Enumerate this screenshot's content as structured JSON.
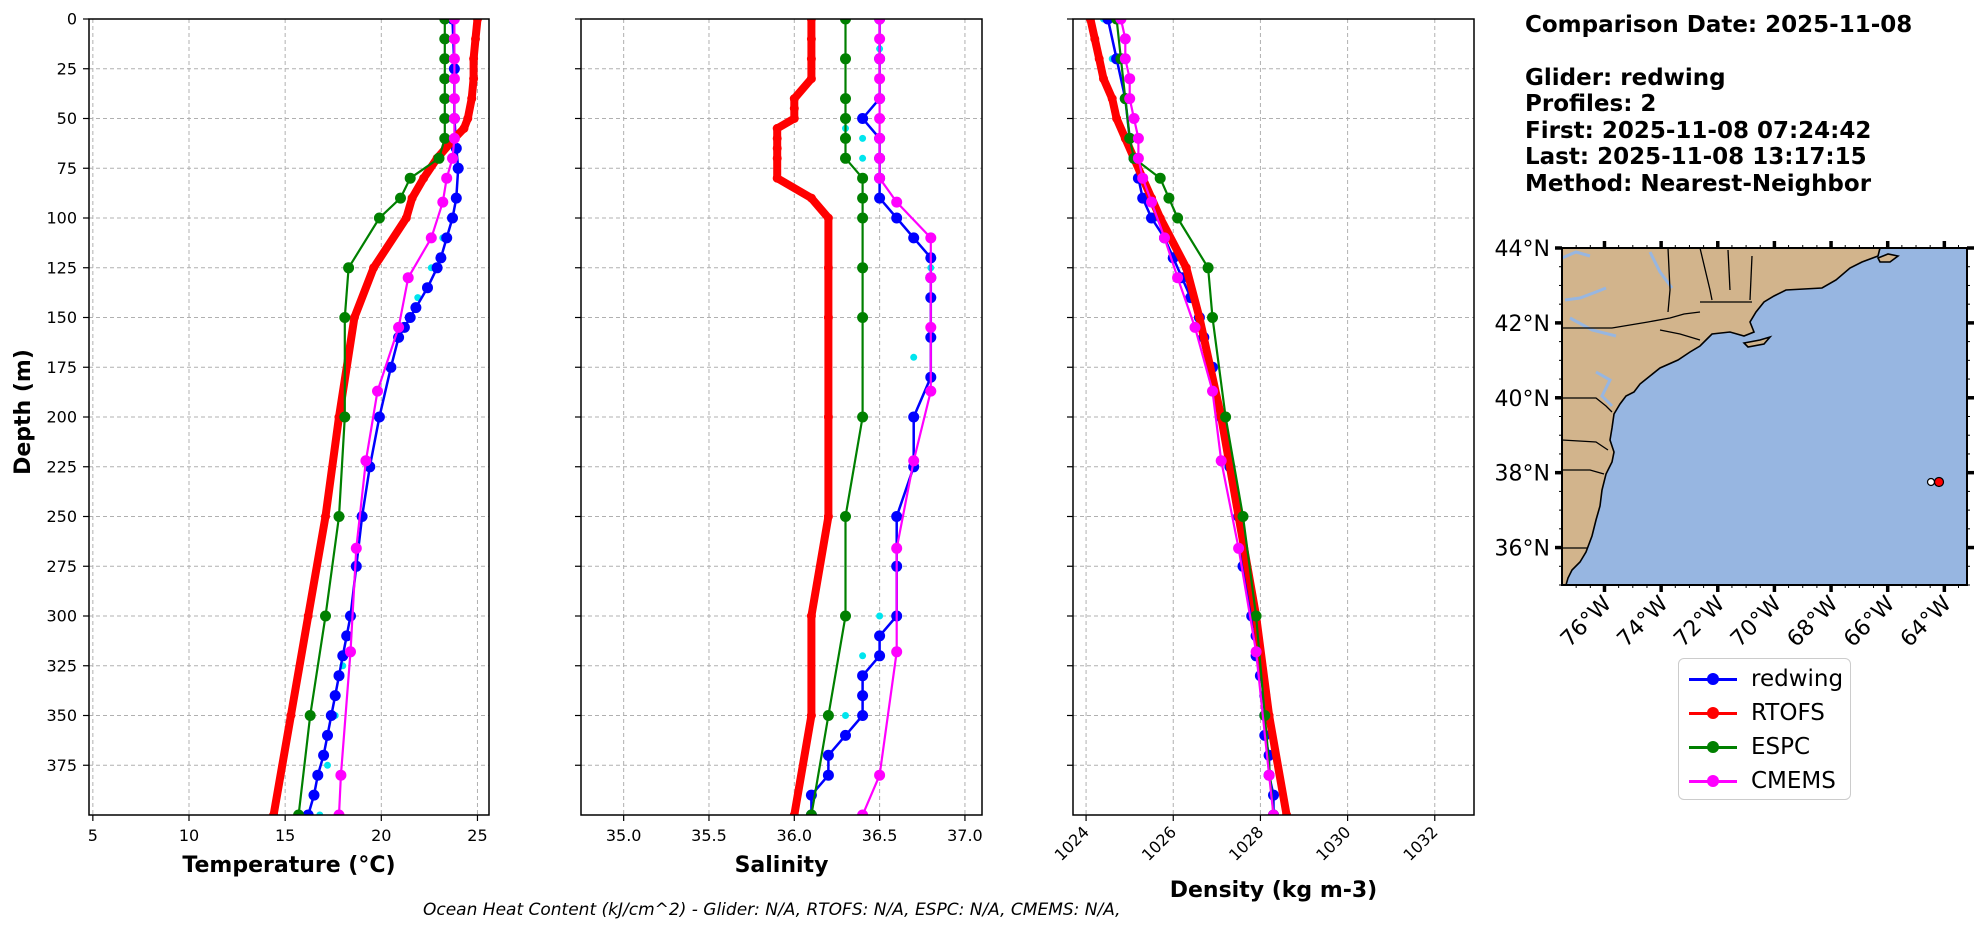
{
  "depth_axis": {
    "label": "Depth (m)",
    "range": [
      0,
      400
    ],
    "ticks": [
      0,
      25,
      50,
      75,
      100,
      125,
      150,
      175,
      200,
      225,
      250,
      275,
      300,
      325,
      350,
      375
    ]
  },
  "colors": {
    "glider": "#0000ff",
    "glider_raw": "#00e5ee",
    "rtofs": "#ff0000",
    "espc": "#008000",
    "cmems": "#ff00ff",
    "ocean": "#97b6e1",
    "land": "#d2b48c",
    "grid": "#b0b0b0"
  },
  "chart_data": [
    {
      "type": "line",
      "title": "",
      "xlabel": "Temperature (°C)",
      "ylabel": "Depth (m)",
      "xlim": [
        4.8,
        25.6
      ],
      "ylim": [
        400,
        0
      ],
      "xticks": [
        5,
        10,
        15,
        20,
        25
      ],
      "series": [
        {
          "name": "redwing raw",
          "depth": [
            0,
            25,
            50,
            75,
            90,
            100,
            110,
            125,
            140,
            160,
            200,
            250,
            300,
            325,
            350,
            375,
            400
          ],
          "values": [
            23.8,
            23.8,
            23.9,
            23.9,
            23.9,
            23.7,
            23.2,
            22.6,
            21.9,
            20.9,
            19.8,
            19.0,
            18.4,
            18.0,
            17.6,
            17.2,
            16.8
          ]
        },
        {
          "name": "redwing",
          "depth": [
            0,
            25,
            50,
            65,
            75,
            90,
            100,
            110,
            120,
            125,
            135,
            145,
            150,
            155,
            160,
            175,
            200,
            225,
            250,
            275,
            300,
            310,
            320,
            330,
            340,
            350,
            360,
            370,
            380,
            390,
            400
          ],
          "values": [
            23.7,
            23.8,
            23.8,
            23.9,
            24.0,
            23.9,
            23.7,
            23.4,
            23.1,
            22.9,
            22.4,
            21.8,
            21.5,
            21.2,
            20.9,
            20.5,
            19.9,
            19.4,
            19.0,
            18.7,
            18.4,
            18.2,
            18.0,
            17.8,
            17.6,
            17.4,
            17.2,
            17.0,
            16.7,
            16.5,
            16.2
          ]
        },
        {
          "name": "RTOFS",
          "depth": [
            0,
            10,
            20,
            30,
            40,
            50,
            55,
            60,
            70,
            80,
            90,
            100,
            125,
            150,
            200,
            250,
            300,
            350,
            400
          ],
          "values": [
            25.0,
            24.9,
            24.8,
            24.8,
            24.7,
            24.5,
            24.3,
            23.8,
            22.9,
            22.2,
            21.6,
            21.3,
            19.6,
            18.6,
            17.8,
            17.1,
            16.2,
            15.3,
            14.4
          ]
        },
        {
          "name": "ESPC",
          "depth": [
            0,
            10,
            20,
            30,
            40,
            50,
            60,
            70,
            80,
            90,
            100,
            125,
            150,
            200,
            250,
            300,
            350,
            400
          ],
          "values": [
            23.3,
            23.3,
            23.3,
            23.3,
            23.3,
            23.3,
            23.3,
            23.0,
            21.5,
            21.0,
            19.9,
            18.3,
            18.1,
            18.1,
            17.8,
            17.1,
            16.3,
            15.7
          ]
        },
        {
          "name": "CMEMS",
          "depth": [
            0,
            10,
            20,
            30,
            40,
            50,
            60,
            70,
            80,
            92,
            110,
            130,
            155,
            187,
            222,
            266,
            318,
            380,
            400
          ],
          "values": [
            23.8,
            23.8,
            23.8,
            23.8,
            23.8,
            23.8,
            23.8,
            23.7,
            23.4,
            23.2,
            22.6,
            21.4,
            20.9,
            19.8,
            19.2,
            18.7,
            18.4,
            17.9,
            17.8
          ]
        }
      ]
    },
    {
      "type": "line",
      "title": "",
      "xlabel": "Salinity",
      "ylabel": "",
      "xlim": [
        34.75,
        37.1
      ],
      "ylim": [
        400,
        0
      ],
      "xticks": [
        35.0,
        35.5,
        36.0,
        36.5,
        37.0
      ],
      "tick_labels": [
        "35.0",
        "35.5",
        "36.0",
        "36.5",
        "37.0"
      ],
      "series": [
        {
          "name": "redwing raw",
          "depth": [
            0,
            15,
            30,
            40,
            50,
            55,
            60,
            70,
            80,
            90,
            100,
            110,
            120,
            125,
            140,
            170,
            200,
            250,
            300,
            310,
            320,
            330,
            340,
            350,
            400
          ],
          "values": [
            36.5,
            36.5,
            36.5,
            36.5,
            36.5,
            36.3,
            36.4,
            36.4,
            36.5,
            36.5,
            36.4,
            36.7,
            36.8,
            36.8,
            36.8,
            36.7,
            36.7,
            36.6,
            36.5,
            36.5,
            36.4,
            36.4,
            36.4,
            36.3,
            36.1
          ]
        },
        {
          "name": "redwing",
          "depth": [
            0,
            20,
            40,
            50,
            60,
            70,
            80,
            90,
            100,
            110,
            120,
            130,
            140,
            160,
            180,
            200,
            225,
            250,
            275,
            300,
            310,
            320,
            330,
            340,
            350,
            360,
            370,
            380,
            390,
            400
          ],
          "values": [
            36.5,
            36.5,
            36.5,
            36.4,
            36.5,
            36.5,
            36.5,
            36.5,
            36.6,
            36.7,
            36.8,
            36.8,
            36.8,
            36.8,
            36.8,
            36.7,
            36.7,
            36.6,
            36.6,
            36.6,
            36.5,
            36.5,
            36.4,
            36.4,
            36.4,
            36.3,
            36.2,
            36.2,
            36.1,
            36.1
          ]
        },
        {
          "name": "RTOFS",
          "depth": [
            0,
            10,
            20,
            30,
            40,
            45,
            50,
            55,
            60,
            65,
            70,
            80,
            90,
            100,
            125,
            150,
            200,
            250,
            300,
            350,
            400
          ],
          "values": [
            36.1,
            36.1,
            36.1,
            36.1,
            36.0,
            36.0,
            36.0,
            35.9,
            35.9,
            35.9,
            35.9,
            35.9,
            36.1,
            36.2,
            36.2,
            36.2,
            36.2,
            36.2,
            36.1,
            36.1,
            36.0
          ]
        },
        {
          "name": "ESPC",
          "depth": [
            0,
            20,
            40,
            50,
            60,
            70,
            80,
            90,
            100,
            125,
            150,
            200,
            250,
            300,
            350,
            400
          ],
          "values": [
            36.3,
            36.3,
            36.3,
            36.3,
            36.3,
            36.3,
            36.4,
            36.4,
            36.4,
            36.4,
            36.4,
            36.4,
            36.3,
            36.3,
            36.2,
            36.1
          ]
        },
        {
          "name": "CMEMS",
          "depth": [
            0,
            10,
            20,
            30,
            40,
            50,
            60,
            70,
            80,
            92,
            110,
            130,
            155,
            187,
            222,
            266,
            318,
            380,
            400
          ],
          "values": [
            36.5,
            36.5,
            36.5,
            36.5,
            36.5,
            36.5,
            36.5,
            36.5,
            36.5,
            36.6,
            36.8,
            36.8,
            36.8,
            36.8,
            36.7,
            36.6,
            36.6,
            36.5,
            36.4
          ]
        }
      ]
    },
    {
      "type": "line",
      "title": "",
      "xlabel": "Density (kg m-3)",
      "ylabel": "",
      "xlim": [
        1023.7,
        1032.9
      ],
      "ylim": [
        400,
        0
      ],
      "xticks": [
        1024,
        1026,
        1028,
        1030,
        1032
      ],
      "series": [
        {
          "name": "redwing raw",
          "depth": [
            0,
            20,
            40,
            60,
            80,
            90,
            100,
            110,
            120,
            140,
            160,
            200,
            250,
            300,
            350,
            400
          ],
          "values": [
            1024.4,
            1024.6,
            1024.9,
            1025.0,
            1025.2,
            1025.4,
            1025.6,
            1025.9,
            1026.1,
            1026.4,
            1026.7,
            1027.1,
            1027.5,
            1027.8,
            1028.1,
            1028.3
          ]
        },
        {
          "name": "redwing",
          "depth": [
            0,
            20,
            40,
            60,
            70,
            80,
            90,
            100,
            110,
            120,
            130,
            140,
            150,
            160,
            175,
            200,
            225,
            250,
            275,
            300,
            310,
            320,
            330,
            340,
            350,
            360,
            370,
            380,
            390,
            400
          ],
          "values": [
            1024.5,
            1024.7,
            1024.9,
            1025.0,
            1025.1,
            1025.2,
            1025.3,
            1025.5,
            1025.8,
            1026.0,
            1026.2,
            1026.4,
            1026.6,
            1026.7,
            1026.9,
            1027.1,
            1027.3,
            1027.5,
            1027.6,
            1027.8,
            1027.9,
            1027.9,
            1028.0,
            1028.1,
            1028.1,
            1028.1,
            1028.2,
            1028.2,
            1028.3,
            1028.3
          ]
        },
        {
          "name": "RTOFS",
          "depth": [
            0,
            10,
            20,
            30,
            40,
            50,
            60,
            70,
            80,
            90,
            100,
            125,
            150,
            200,
            250,
            300,
            350,
            400
          ],
          "values": [
            1024.1,
            1024.2,
            1024.3,
            1024.4,
            1024.6,
            1024.7,
            1024.9,
            1025.1,
            1025.3,
            1025.5,
            1025.7,
            1026.3,
            1026.6,
            1027.1,
            1027.5,
            1027.9,
            1028.2,
            1028.6
          ]
        },
        {
          "name": "ESPC",
          "depth": [
            0,
            20,
            40,
            60,
            70,
            80,
            90,
            100,
            125,
            150,
            200,
            250,
            300,
            350,
            400
          ],
          "values": [
            1024.7,
            1024.8,
            1024.9,
            1025.0,
            1025.1,
            1025.7,
            1025.9,
            1026.1,
            1026.8,
            1026.9,
            1027.2,
            1027.6,
            1027.9,
            1028.1,
            1028.3
          ]
        },
        {
          "name": "CMEMS",
          "depth": [
            0,
            10,
            20,
            30,
            40,
            50,
            60,
            70,
            80,
            92,
            110,
            130,
            155,
            187,
            222,
            266,
            318,
            380,
            400
          ],
          "values": [
            1024.8,
            1024.9,
            1024.9,
            1025.0,
            1025.0,
            1025.1,
            1025.2,
            1025.2,
            1025.3,
            1025.5,
            1025.8,
            1026.1,
            1026.5,
            1026.9,
            1027.1,
            1027.5,
            1027.9,
            1028.2,
            1028.3
          ]
        }
      ]
    }
  ],
  "info": {
    "comparison_date": "Comparison Date: 2025-11-08",
    "glider": "Glider: redwing",
    "profiles": "Profiles: 2",
    "first": "First: 2025-11-08 07:24:42",
    "last": "Last: 2025-11-08 13:17:15",
    "method": "Method: Nearest-Neighbor"
  },
  "map": {
    "lat_labels": [
      "44°N",
      "42°N",
      "40°N",
      "38°N",
      "36°N"
    ],
    "lon_labels": [
      "76°W",
      "74°W",
      "72°W",
      "70°W",
      "68°W",
      "66°W",
      "64°W"
    ],
    "lat_range": [
      35,
      44
    ],
    "lon_range": [
      -77.5,
      -63.2
    ],
    "glider_position": {
      "lat": 37.9,
      "lon": -64.3
    },
    "model_position": {
      "lat": 37.9,
      "lon": -63.9
    }
  },
  "legend": {
    "items": [
      {
        "label": "redwing",
        "color": "#0000ff"
      },
      {
        "label": "RTOFS",
        "color": "#ff0000"
      },
      {
        "label": "ESPC",
        "color": "#008000"
      },
      {
        "label": "CMEMS",
        "color": "#ff00ff"
      }
    ]
  },
  "footer": "Ocean Heat Content (kJ/cm^2) - Glider: N/A,  RTOFS: N/A,  ESPC: N/A,  CMEMS: N/A,"
}
